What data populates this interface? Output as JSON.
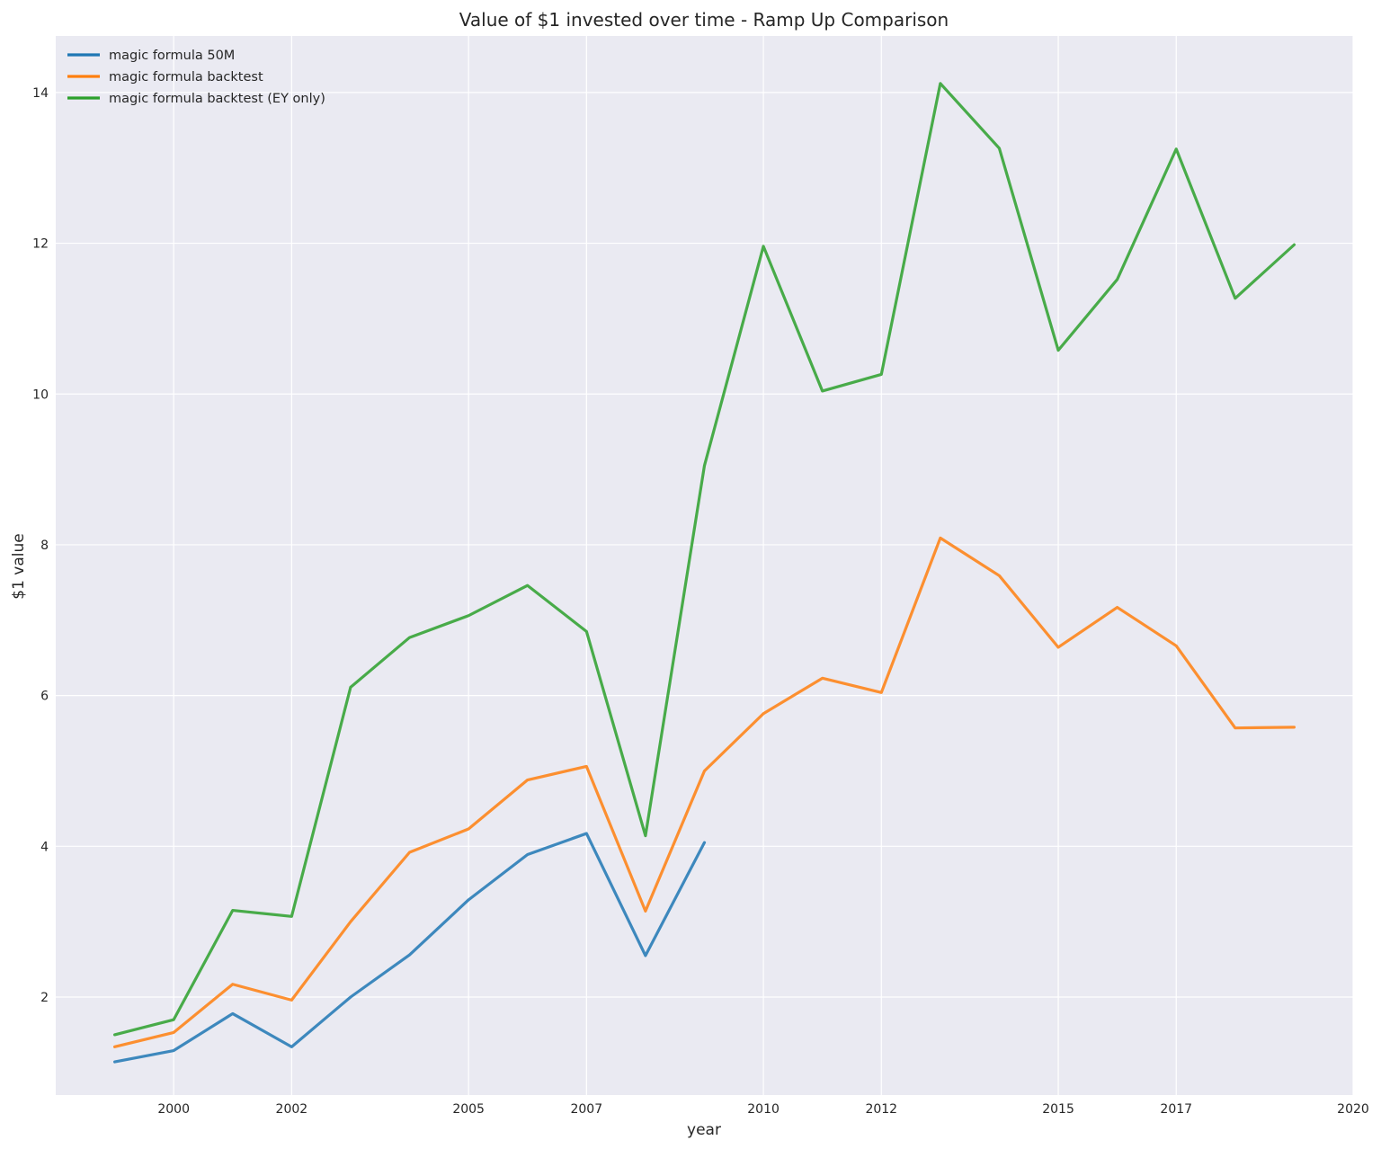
{
  "chart_data": {
    "type": "line",
    "title": "Value of $1 invested over time - Ramp Up Comparison",
    "xlabel": "year",
    "ylabel": "$1 value",
    "xlim": [
      1998,
      2020
    ],
    "ylim": [
      0.7,
      14.75
    ],
    "x_ticks": [
      2000,
      2002,
      2005,
      2007,
      2010,
      2012,
      2015,
      2017,
      2020
    ],
    "y_ticks": [
      2,
      4,
      6,
      8,
      10,
      12,
      14
    ],
    "grid": true,
    "legend_position": "top-left",
    "x": [
      1999.0,
      2000.0,
      2001.0,
      2002.0,
      2003.0,
      2004.0,
      2005.0,
      2006.0,
      2007.0,
      2008.0,
      2009.0,
      2010.0,
      2011.0,
      2012.0,
      2013.0,
      2014.0,
      2015.0,
      2016.0,
      2017.0,
      2018.0,
      2019.0
    ],
    "series": [
      {
        "name": "magic formula 50M",
        "color": "#1f77b4",
        "values": [
          1.14,
          1.29,
          1.78,
          1.34,
          2.0,
          2.56,
          3.29,
          3.89,
          4.17,
          2.55,
          4.05,
          null,
          null,
          null,
          null,
          null,
          null,
          null,
          null,
          null,
          null
        ]
      },
      {
        "name": "magic formula backtest",
        "color": "#ff7f0e",
        "values": [
          1.34,
          1.53,
          2.17,
          1.96,
          3.0,
          3.92,
          4.23,
          4.88,
          5.06,
          3.14,
          5.0,
          5.76,
          6.23,
          6.04,
          8.09,
          7.59,
          6.64,
          7.17,
          6.66,
          5.57,
          5.58
        ]
      },
      {
        "name": "magic formula backtest (EY only)",
        "color": "#2ca02c",
        "values": [
          1.5,
          1.7,
          3.15,
          3.07,
          6.11,
          6.77,
          7.06,
          7.46,
          6.85,
          4.14,
          9.05,
          11.96,
          10.04,
          10.26,
          14.12,
          13.26,
          10.58,
          11.52,
          13.25,
          11.27,
          11.98
        ]
      }
    ]
  }
}
